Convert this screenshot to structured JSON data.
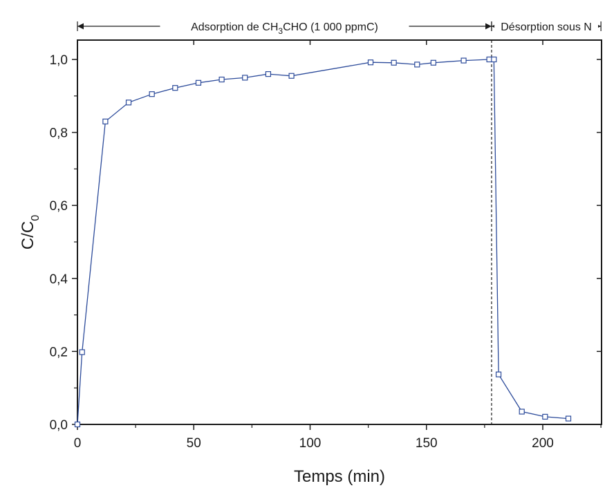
{
  "chart_data": {
    "type": "line",
    "xlabel": "Temps (min)",
    "ylabel": {
      "main": "C/C",
      "sub": "0"
    },
    "xlim": [
      0,
      225
    ],
    "ylim": [
      0,
      1.05
    ],
    "x_ticks": [
      {
        "value": 0,
        "label": "0"
      },
      {
        "value": 50,
        "label": "50"
      },
      {
        "value": 100,
        "label": "100"
      },
      {
        "value": 150,
        "label": "150"
      },
      {
        "value": 200,
        "label": "200"
      }
    ],
    "y_ticks": [
      {
        "value": 0,
        "label": "0,0"
      },
      {
        "value": 0.2,
        "label": "0,2"
      },
      {
        "value": 0.4,
        "label": "0,4"
      },
      {
        "value": 0.6,
        "label": "0,6"
      },
      {
        "value": 0.8,
        "label": "0,8"
      },
      {
        "value": 1.0,
        "label": "1,0"
      }
    ],
    "grid": false,
    "series": [
      {
        "color": "#2b4a9a",
        "marker": "open-square",
        "points": [
          [
            0,
            0.0
          ],
          [
            2,
            0.198
          ],
          [
            12,
            0.83
          ],
          [
            22,
            0.882
          ],
          [
            32,
            0.905
          ],
          [
            42,
            0.922
          ],
          [
            52,
            0.936
          ],
          [
            62,
            0.945
          ],
          [
            72,
            0.95
          ],
          [
            82,
            0.96
          ],
          [
            92,
            0.955
          ],
          [
            126,
            0.992
          ],
          [
            136,
            0.991
          ],
          [
            146,
            0.986
          ],
          [
            153,
            0.991
          ],
          [
            166,
            0.997
          ],
          [
            177,
            1.0
          ],
          [
            179,
            1.0
          ],
          [
            181,
            0.137
          ],
          [
            191,
            0.035
          ],
          [
            201,
            0.021
          ],
          [
            211,
            0.016
          ]
        ]
      }
    ],
    "separator_x": 178,
    "phases": [
      {
        "label_prefix": "Adsorption de CH",
        "label_sub": "3",
        "label_suffix": "CHO (1 000 ppmC)",
        "x_start": 0,
        "x_end": 178
      },
      {
        "label_prefix": "Désorption sous N",
        "label_sub": "",
        "label_suffix": "",
        "x_start": 178,
        "x_end": 225
      }
    ]
  }
}
